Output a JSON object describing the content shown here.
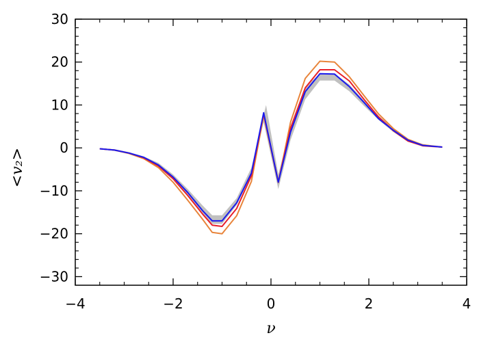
{
  "chart_data": {
    "type": "line",
    "title": "",
    "xlabel": "ν",
    "ylabel": "<v₂>",
    "xlim": [
      -4,
      4
    ],
    "ylim": [
      -32,
      30
    ],
    "xticks": [
      -4,
      -2,
      0,
      2,
      4
    ],
    "xtick_labels": [
      "−4",
      "−2",
      "0",
      "2",
      "4"
    ],
    "yticks": [
      -30,
      -20,
      -10,
      0,
      10,
      20,
      30
    ],
    "ytick_labels": [
      "−30",
      "−20",
      "−10",
      "0",
      "10",
      "20",
      "30"
    ],
    "grid": false,
    "x": [
      -3.5,
      -3.2,
      -2.9,
      -2.6,
      -2.3,
      -2.0,
      -1.7,
      -1.4,
      -1.2,
      -1.0,
      -0.7,
      -0.4,
      -0.15,
      0.15,
      0.4,
      0.7,
      1.0,
      1.3,
      1.6,
      1.9,
      2.2,
      2.5,
      2.8,
      3.1,
      3.5
    ],
    "band": {
      "color": "#c0c0c0",
      "upper": [
        -0.1,
        -0.3,
        -1.0,
        -2.0,
        -3.5,
        -6.2,
        -9.6,
        -13.4,
        -15.7,
        -15.7,
        -11.7,
        -4.6,
        10.0,
        -6.2,
        5.0,
        14.3,
        17.3,
        17.3,
        14.8,
        11.0,
        7.5,
        4.5,
        2.0,
        0.9,
        0.2
      ],
      "lower": [
        -0.3,
        -0.7,
        -1.4,
        -2.6,
        -4.5,
        -7.4,
        -11.0,
        -15.4,
        -17.7,
        -17.7,
        -13.3,
        -6.4,
        6.0,
        -9.6,
        1.8,
        11.3,
        15.7,
        15.7,
        13.2,
        9.8,
        6.5,
        3.7,
        1.4,
        0.5,
        0.0
      ],
      "upper_x": [
        -3.5,
        -3.2,
        -2.9,
        -2.6,
        -2.3,
        -2.0,
        -1.7,
        -1.4,
        -1.2,
        -1.0,
        -0.7,
        -0.4,
        -0.1,
        0.15,
        0.4,
        0.7,
        1.0,
        1.3,
        1.6,
        1.9,
        2.2,
        2.5,
        2.8,
        3.1,
        3.5
      ],
      "lower_x": [
        -3.5,
        -3.2,
        -2.9,
        -2.6,
        -2.3,
        -2.0,
        -1.7,
        -1.4,
        -1.2,
        -1.0,
        -0.7,
        -0.4,
        -0.15,
        0.15,
        0.4,
        0.7,
        1.0,
        1.3,
        1.6,
        1.9,
        2.2,
        2.5,
        2.8,
        3.1,
        3.5
      ]
    },
    "series": [
      {
        "color": "#e8843a",
        "values": [
          -0.2,
          -0.5,
          -1.3,
          -2.5,
          -4.6,
          -8.0,
          -12.2,
          -16.6,
          -19.7,
          -20.0,
          -15.8,
          -7.8,
          7.6,
          -8.1,
          6.0,
          16.2,
          20.2,
          20.0,
          16.6,
          12.2,
          7.9,
          4.5,
          2.0,
          0.7,
          0.2
        ]
      },
      {
        "color": "#e8202a",
        "values": [
          -0.2,
          -0.5,
          -1.2,
          -2.3,
          -4.2,
          -7.2,
          -11.1,
          -15.4,
          -18.0,
          -18.3,
          -14.1,
          -6.5,
          8.0,
          -7.9,
          4.6,
          14.0,
          18.2,
          18.2,
          15.6,
          11.3,
          7.2,
          4.0,
          1.6,
          0.5,
          0.2
        ]
      },
      {
        "color": "#1a1aee",
        "values": [
          -0.2,
          -0.5,
          -1.2,
          -2.2,
          -4.0,
          -6.8,
          -10.4,
          -14.6,
          -17.0,
          -17.0,
          -12.8,
          -5.9,
          8.2,
          -8.0,
          3.7,
          13.1,
          17.3,
          17.2,
          14.3,
          10.6,
          6.8,
          4.1,
          1.8,
          0.6,
          0.2
        ]
      }
    ]
  }
}
